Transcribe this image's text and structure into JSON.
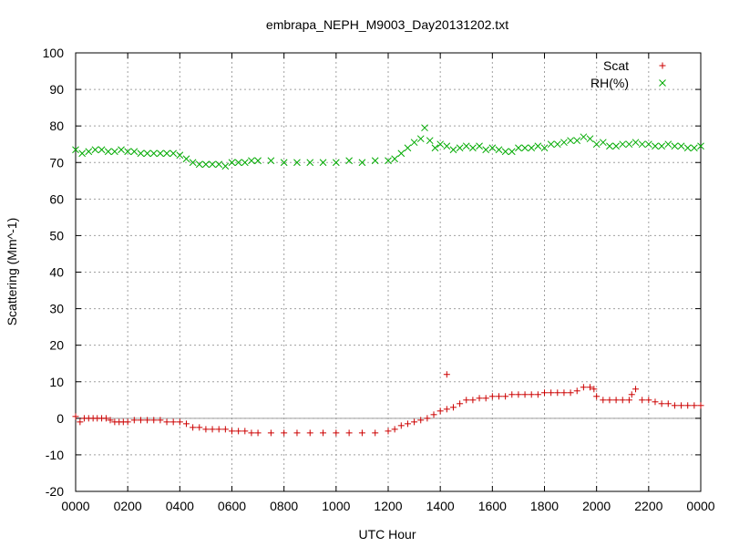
{
  "chart_data": {
    "type": "scatter",
    "title": "embrapa_NEPH_M9003_Day20131202.txt",
    "xlabel": "UTC Hour",
    "ylabel": "Scattering (Mm^-1)",
    "xlim": [
      0,
      24
    ],
    "ylim": [
      -20,
      100
    ],
    "grid": true,
    "legend_position": "top-right",
    "x_ticks": [
      {
        "value": 0,
        "label": "0000"
      },
      {
        "value": 2,
        "label": "0200"
      },
      {
        "value": 4,
        "label": "0400"
      },
      {
        "value": 6,
        "label": "0600"
      },
      {
        "value": 8,
        "label": "0800"
      },
      {
        "value": 10,
        "label": "1000"
      },
      {
        "value": 12,
        "label": "1200"
      },
      {
        "value": 14,
        "label": "1400"
      },
      {
        "value": 16,
        "label": "1600"
      },
      {
        "value": 18,
        "label": "1800"
      },
      {
        "value": 20,
        "label": "2000"
      },
      {
        "value": 22,
        "label": "2200"
      },
      {
        "value": 24,
        "label": "0000"
      }
    ],
    "y_ticks": [
      {
        "value": -20,
        "label": "-20"
      },
      {
        "value": -10,
        "label": "-10"
      },
      {
        "value": 0,
        "label": "0"
      },
      {
        "value": 10,
        "label": "10"
      },
      {
        "value": 20,
        "label": "20"
      },
      {
        "value": 30,
        "label": "30"
      },
      {
        "value": 40,
        "label": "40"
      },
      {
        "value": 50,
        "label": "50"
      },
      {
        "value": 60,
        "label": "60"
      },
      {
        "value": 70,
        "label": "70"
      },
      {
        "value": 80,
        "label": "80"
      },
      {
        "value": 90,
        "label": "90"
      },
      {
        "value": 100,
        "label": "100"
      }
    ],
    "zero_line": 0,
    "series": [
      {
        "name": "Scat",
        "marker": "plus",
        "color": "#cc0000",
        "x": [
          0.0,
          0.17,
          0.33,
          0.5,
          0.67,
          0.83,
          1.0,
          1.17,
          1.33,
          1.5,
          1.67,
          1.83,
          2.0,
          2.25,
          2.5,
          2.75,
          3.0,
          3.25,
          3.5,
          3.75,
          4.0,
          4.25,
          4.5,
          4.75,
          5.0,
          5.25,
          5.5,
          5.75,
          6.0,
          6.25,
          6.5,
          6.75,
          7.0,
          7.5,
          8.0,
          8.5,
          9.0,
          9.5,
          10.0,
          10.5,
          11.0,
          11.5,
          12.0,
          12.25,
          12.5,
          12.75,
          13.0,
          13.25,
          13.5,
          13.75,
          14.0,
          14.25,
          14.5,
          14.75,
          15.0,
          15.25,
          15.5,
          15.75,
          16.0,
          16.25,
          16.5,
          16.75,
          17.0,
          17.25,
          17.5,
          17.75,
          18.0,
          18.25,
          18.5,
          18.75,
          19.0,
          19.25,
          19.5,
          19.75,
          19.9,
          20.0,
          20.25,
          20.5,
          20.75,
          21.0,
          21.25,
          21.35,
          21.5,
          21.75,
          22.0,
          22.25,
          22.5,
          22.75,
          23.0,
          23.25,
          23.5,
          23.75,
          24.0,
          14.25
        ],
        "values": [
          0.5,
          -1.0,
          0.0,
          0.0,
          0.0,
          0.0,
          0.0,
          0.0,
          -0.5,
          -1.0,
          -1.0,
          -1.0,
          -1.0,
          -0.5,
          -0.5,
          -0.5,
          -0.5,
          -0.5,
          -1.0,
          -1.0,
          -1.0,
          -1.5,
          -2.5,
          -2.5,
          -3.0,
          -3.0,
          -3.0,
          -3.0,
          -3.5,
          -3.5,
          -3.5,
          -4.0,
          -4.0,
          -4.0,
          -4.0,
          -4.0,
          -4.0,
          -4.0,
          -4.0,
          -4.0,
          -4.0,
          -4.0,
          -3.5,
          -3.0,
          -2.0,
          -1.5,
          -1.0,
          -0.5,
          0.0,
          1.0,
          2.0,
          2.5,
          3.0,
          4.0,
          5.0,
          5.0,
          5.5,
          5.5,
          6.0,
          6.0,
          6.0,
          6.5,
          6.5,
          6.5,
          6.5,
          6.5,
          7.0,
          7.0,
          7.0,
          7.0,
          7.0,
          7.5,
          8.5,
          8.5,
          8.0,
          6.0,
          5.0,
          5.0,
          5.0,
          5.0,
          5.0,
          6.5,
          8.0,
          5.0,
          5.0,
          4.5,
          4.0,
          4.0,
          3.5,
          3.5,
          3.5,
          3.5,
          3.5,
          12.0
        ]
      },
      {
        "name": "RH(%)",
        "marker": "cross",
        "color": "#00aa00",
        "x": [
          0.0,
          0.25,
          0.5,
          0.75,
          1.0,
          1.25,
          1.5,
          1.75,
          2.0,
          2.25,
          2.5,
          2.75,
          3.0,
          3.25,
          3.5,
          3.75,
          4.0,
          4.25,
          4.5,
          4.75,
          5.0,
          5.25,
          5.5,
          5.75,
          6.0,
          6.25,
          6.5,
          6.75,
          7.0,
          7.5,
          8.0,
          8.5,
          9.0,
          9.5,
          10.0,
          10.5,
          11.0,
          11.5,
          12.0,
          12.25,
          12.5,
          12.75,
          13.0,
          13.25,
          13.4,
          13.6,
          13.8,
          14.0,
          14.25,
          14.5,
          14.75,
          15.0,
          15.25,
          15.5,
          15.75,
          16.0,
          16.25,
          16.5,
          16.75,
          17.0,
          17.25,
          17.5,
          17.75,
          18.0,
          18.25,
          18.5,
          18.75,
          19.0,
          19.25,
          19.5,
          19.75,
          20.0,
          20.25,
          20.5,
          20.75,
          21.0,
          21.25,
          21.5,
          21.75,
          22.0,
          22.25,
          22.5,
          22.75,
          23.0,
          23.25,
          23.5,
          23.75,
          24.0
        ],
        "values": [
          73.5,
          72.5,
          73.0,
          73.5,
          73.5,
          73.0,
          73.0,
          73.5,
          73.0,
          73.0,
          72.5,
          72.5,
          72.5,
          72.5,
          72.5,
          72.5,
          72.0,
          71.0,
          70.0,
          69.5,
          69.5,
          69.5,
          69.5,
          69.0,
          70.0,
          70.0,
          70.0,
          70.5,
          70.5,
          70.5,
          70.0,
          70.0,
          70.0,
          70.0,
          70.0,
          70.5,
          70.0,
          70.5,
          70.5,
          71.0,
          72.5,
          74.0,
          75.5,
          76.5,
          79.5,
          76.0,
          74.0,
          75.0,
          74.5,
          73.5,
          74.0,
          74.5,
          74.0,
          74.5,
          73.5,
          74.0,
          73.5,
          73.0,
          73.0,
          74.0,
          74.0,
          74.0,
          74.5,
          74.0,
          75.0,
          75.0,
          75.5,
          76.0,
          76.0,
          77.0,
          76.5,
          75.0,
          75.5,
          74.5,
          74.5,
          75.0,
          75.0,
          75.5,
          75.0,
          75.0,
          74.5,
          74.5,
          75.0,
          74.5,
          74.5,
          74.0,
          74.0,
          74.5
        ]
      }
    ]
  }
}
